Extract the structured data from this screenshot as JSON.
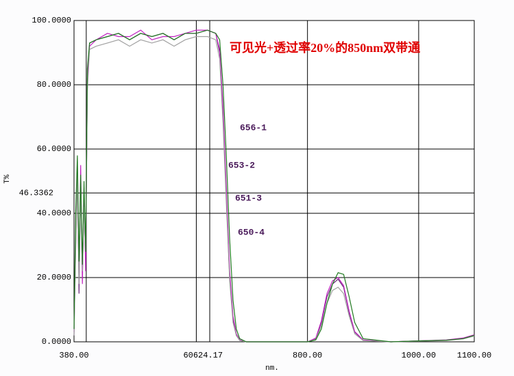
{
  "chart_data": {
    "type": "line",
    "title": "可见光+透过率20%的850nm双带通",
    "ylabel": "T%",
    "xlabel": "nm.",
    "xlim": [
      380,
      1100
    ],
    "ylim": [
      0,
      100
    ],
    "xticks": [
      {
        "value": 380,
        "label": "380.00"
      },
      {
        "value": 800,
        "label": "800.00"
      },
      {
        "value": 1000,
        "label": "1000.00"
      },
      {
        "value": 1100,
        "label": "1100.00"
      }
    ],
    "yticks": [
      {
        "value": 0,
        "label": "0.0000"
      },
      {
        "value": 20,
        "label": "20.0000"
      },
      {
        "value": 40,
        "label": "40.0000"
      },
      {
        "value": 60,
        "label": "60.0000"
      },
      {
        "value": 80,
        "label": "80.0000"
      },
      {
        "value": 100,
        "label": "100.0000"
      }
    ],
    "xgrid": [
      402,
      600,
      624.17,
      800,
      1000
    ],
    "x_cursor_label": "60624.17",
    "y_cursor": 46.3362,
    "grid": true,
    "x": [
      380,
      383,
      386,
      389,
      392,
      395,
      398,
      401,
      404,
      408,
      420,
      440,
      460,
      480,
      500,
      520,
      540,
      560,
      580,
      600,
      620,
      635,
      642,
      648,
      654,
      660,
      666,
      672,
      678,
      690,
      720,
      760,
      800,
      815,
      825,
      835,
      845,
      855,
      865,
      875,
      885,
      900,
      950,
      1000,
      1050,
      1080,
      1100
    ],
    "series": [
      {
        "name": "656-1",
        "color": "#6a2a7a",
        "values": [
          2,
          30,
          55,
          15,
          50,
          20,
          45,
          25,
          80,
          93,
          94,
          95,
          96,
          94,
          96,
          95,
          96,
          94,
          96,
          96,
          97,
          96,
          90,
          70,
          45,
          20,
          7,
          2,
          0.5,
          0,
          0,
          0,
          0,
          1,
          6,
          14,
          18,
          19.5,
          17,
          9,
          3,
          0.5,
          0,
          0.3,
          0.5,
          1,
          2
        ]
      },
      {
        "name": "653-2",
        "color": "#c020c0",
        "values": [
          3,
          35,
          50,
          20,
          55,
          18,
          48,
          22,
          82,
          92,
          94,
          96,
          95,
          95,
          97,
          94,
          95,
          95,
          96,
          97,
          97,
          96,
          91,
          73,
          48,
          22,
          8,
          2.5,
          0.6,
          0,
          0,
          0,
          0,
          1.2,
          6.5,
          15,
          19,
          20,
          17.5,
          9.5,
          3.2,
          0.6,
          0,
          0.3,
          0.6,
          1.2,
          2.2
        ]
      },
      {
        "name": "651-3",
        "color": "#a0a0a0",
        "values": [
          2,
          28,
          52,
          18,
          47,
          22,
          42,
          28,
          78,
          91,
          92,
          93,
          94,
          92,
          94,
          93,
          94,
          92,
          94,
          95,
          95,
          94,
          88,
          68,
          43,
          19,
          6,
          2,
          0.4,
          0,
          0,
          0,
          0,
          0.8,
          5,
          12,
          16,
          17,
          15,
          8,
          2.5,
          0.4,
          0,
          0.2,
          0.4,
          0.9,
          1.8
        ]
      },
      {
        "name": "650-4",
        "color": "#207a20",
        "values": [
          4,
          40,
          58,
          25,
          52,
          24,
          50,
          28,
          85,
          93,
          94,
          95,
          96,
          94,
          96,
          95,
          96,
          94,
          96,
          96,
          97,
          96,
          94,
          80,
          58,
          32,
          13,
          4,
          1,
          0,
          0,
          0,
          0,
          0.6,
          4,
          12,
          18,
          21.5,
          21,
          14,
          6,
          1,
          0,
          0.3,
          0.5,
          1,
          2
        ]
      }
    ]
  }
}
